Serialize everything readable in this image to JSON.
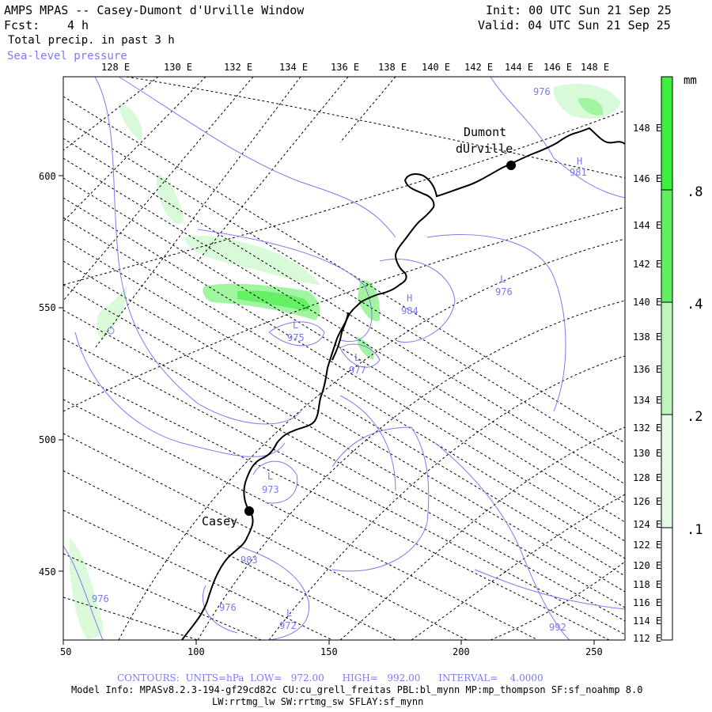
{
  "header": {
    "title": "AMPS MPAS -- Casey-Dumont d'Urville Window",
    "fcst_label": "Fcst:",
    "fcst_value": "4 h",
    "field_label": "Total precip. in past 3 h",
    "overlay_label": "Sea-level pressure",
    "init": "Init: 00 UTC Sun 21 Sep 25",
    "valid": "Valid: 04 UTC Sun 21 Sep 25"
  },
  "map": {
    "top_lon_labels": [
      "128 E",
      "130 E",
      "132 E",
      "134 E",
      "136 E",
      "138 E",
      "140 E",
      "142 E",
      "144 E",
      "146 E",
      "148 E"
    ],
    "right_lon_labels": [
      "148 E",
      "146 E",
      "144 E",
      "142 E",
      "140 E",
      "138 E",
      "136 E",
      "134 E",
      "132 E",
      "130 E",
      "128 E",
      "126 E",
      "124 E",
      "122 E",
      "120 E",
      "118 E",
      "116 E",
      "114 E",
      "112 E"
    ],
    "x_ticks": [
      "50",
      "100",
      "150",
      "200",
      "250"
    ],
    "y_ticks": [
      "600",
      "550",
      "500",
      "450"
    ],
    "stations": [
      {
        "name": "Dumont",
        "name2": "dUrville"
      },
      {
        "name": "Casey"
      }
    ],
    "pressure_labels": [
      "976",
      "981",
      "976",
      "984",
      "975",
      "977",
      "973",
      "983",
      "976",
      "976",
      "972",
      "992"
    ],
    "high_low_marks": [
      "H",
      "L",
      "L",
      "H",
      "L",
      "L",
      "L",
      "L",
      "L"
    ],
    "coastline_color": "#000000",
    "contour_color": "#7b7bf0",
    "precip_color": "#4cf04c"
  },
  "colorbar": {
    "unit": "mm",
    "levels": [
      ".8",
      ".4",
      ".2",
      ".1"
    ],
    "colors": [
      "#5ef05e",
      "#9cf59c",
      "#d8fad8",
      "#ffffff"
    ]
  },
  "footer": {
    "contours": "CONTOURS:  UNITS=hPa  LOW=   972.00      HIGH=   992.00      INTERVAL=    4.0000",
    "model_info": "Model Info: MPASv8.2.3-194-gf29cd82c CU:cu_grell_freitas PBL:bl_mynn MP:mp_thompson SF:sf_noahmp 8.0",
    "model_info2": "LW:rrtmg_lw SW:rrtmg_sw SFLAY:sf_mynn"
  }
}
